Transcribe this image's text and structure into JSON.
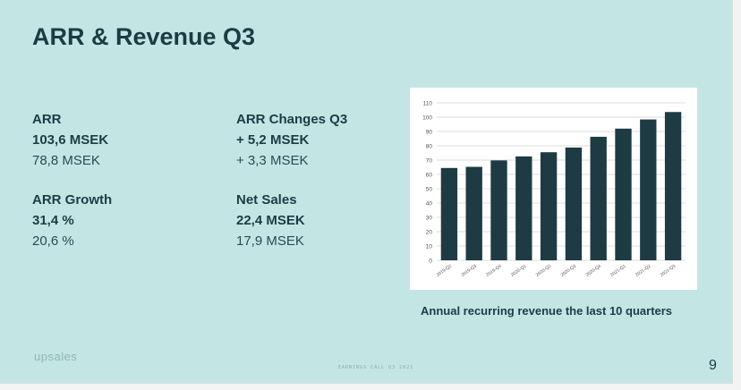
{
  "slide": {
    "title": "ARR & Revenue Q3",
    "kpis": {
      "arr": {
        "label": "ARR",
        "primary": "103,6 MSEK",
        "secondary": "78,8 MSEK"
      },
      "arr_changes": {
        "label": "ARR Changes Q3",
        "primary": "+ 5,2 MSEK",
        "secondary": "+ 3,3 MSEK"
      },
      "arr_growth": {
        "label": "ARR Growth",
        "primary": "31,4 %",
        "secondary": "20,6 %"
      },
      "net_sales": {
        "label": "Net Sales",
        "primary": "22,4 MSEK",
        "secondary": "17,9 MSEK"
      }
    },
    "chart_caption": "Annual recurring revenue the last 10 quarters",
    "logo_text": "upsales",
    "footer": "EARNINGS CALL Q3 2021",
    "page_number": "9"
  },
  "colors": {
    "background": "#c3e6e5",
    "text": "#1e3b44",
    "bar": "#1e3b44",
    "grid": "#dddddd"
  },
  "chart_data": {
    "type": "bar",
    "title": "",
    "xlabel": "",
    "ylabel": "",
    "categories": [
      "2019-Q2",
      "2019-Q3",
      "2019-Q4",
      "2020-Q1",
      "2020-Q2",
      "2020-Q3",
      "2020-Q4",
      "2021-Q1",
      "2021-Q2",
      "2021-Q3"
    ],
    "values": [
      64.5,
      65.3,
      69.8,
      72.6,
      75.5,
      78.8,
      86.3,
      92.0,
      98.4,
      103.6
    ],
    "ylim": [
      0,
      110
    ],
    "yticks": [
      0,
      10,
      20,
      30,
      40,
      50,
      60,
      70,
      80,
      90,
      100,
      110
    ],
    "grid": true,
    "legend": "none"
  }
}
